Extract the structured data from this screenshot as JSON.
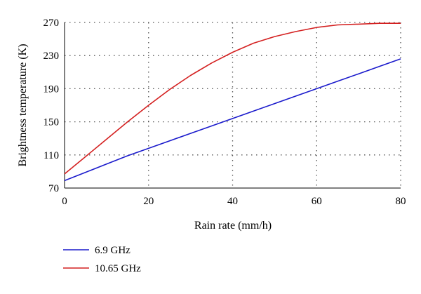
{
  "chart_data": {
    "type": "line",
    "title": "",
    "xlabel": "Rain rate (mm/h)",
    "ylabel": "Brightness temperature (K)",
    "xlim": [
      0,
      80
    ],
    "ylim": [
      70,
      270
    ],
    "xticks": [
      0,
      20,
      40,
      60,
      80
    ],
    "yticks": [
      70,
      110,
      150,
      190,
      230,
      270
    ],
    "xtick_labels": [
      "0",
      "20",
      "40",
      "60",
      "80"
    ],
    "ytick_labels": [
      "70",
      "110",
      "150",
      "190",
      "230",
      "270"
    ],
    "grid": true,
    "legend_position": "bottom-left",
    "series": [
      {
        "name": "6.9 GHz",
        "color": "#1a1acc",
        "x": [
          0,
          5,
          10,
          15,
          20,
          25,
          30,
          35,
          40,
          45,
          50,
          55,
          60,
          65,
          70,
          75,
          80
        ],
        "y": [
          79,
          89,
          99,
          109,
          118,
          127,
          136,
          145,
          154,
          163,
          172,
          181,
          190,
          199,
          208,
          217,
          226
        ]
      },
      {
        "name": "10.65 GHz",
        "color": "#d42020",
        "x": [
          0,
          5,
          10,
          15,
          20,
          25,
          30,
          35,
          40,
          45,
          50,
          55,
          60,
          65,
          70,
          75,
          80
        ],
        "y": [
          87,
          108,
          129,
          150,
          170,
          189,
          206,
          221,
          234,
          245,
          253,
          259,
          264,
          267,
          268,
          269,
          269
        ]
      }
    ]
  }
}
